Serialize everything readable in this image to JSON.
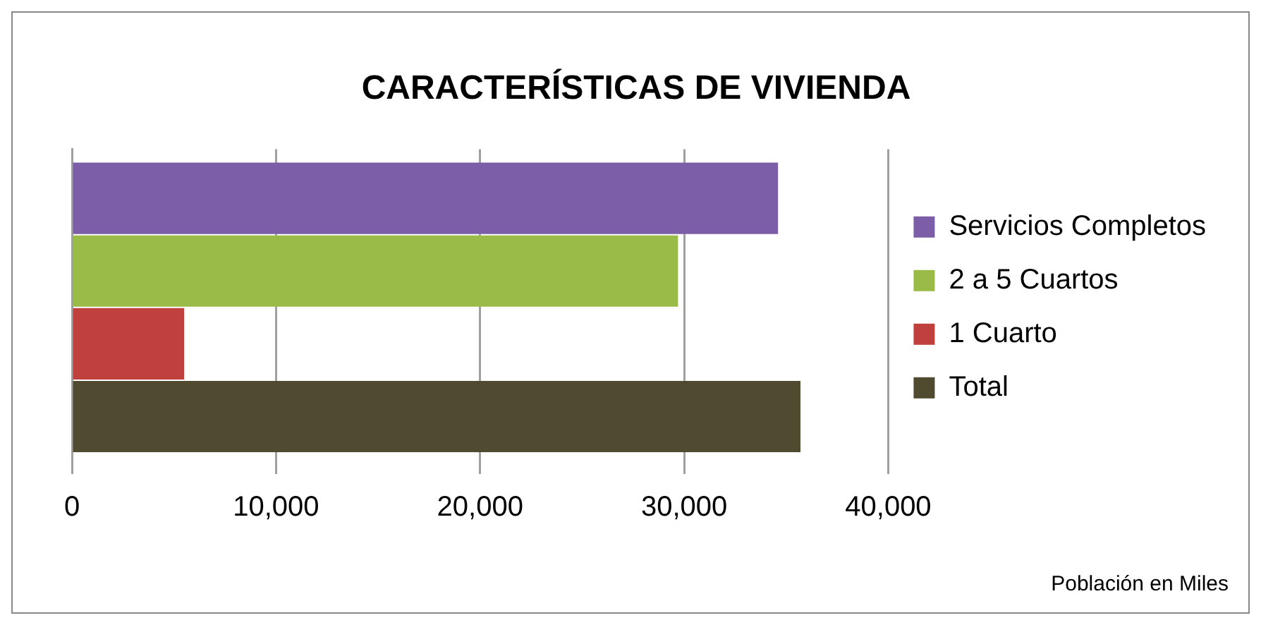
{
  "chart_data": {
    "type": "bar",
    "orientation": "horizontal",
    "title": "CARACTERÍSTICAS DE VIVIENDA",
    "categories": [
      null
    ],
    "series": [
      {
        "name": "Servicios Completos",
        "color": "#7b5ea7",
        "values": [
          34600
        ]
      },
      {
        "name": "2 a 5 Cuartos",
        "color": "#9bbb48",
        "values": [
          29700
        ]
      },
      {
        "name": "1 Cuarto",
        "color": "#c0403d",
        "values": [
          5500
        ]
      },
      {
        "name": "Total",
        "color": "#4f4a30",
        "values": [
          35700
        ]
      }
    ],
    "xlim": [
      0,
      40000
    ],
    "xticks": [
      {
        "value": 0,
        "label": "0"
      },
      {
        "value": 10000,
        "label": "10,000"
      },
      {
        "value": 20000,
        "label": "20,000"
      },
      {
        "value": 30000,
        "label": "30,000"
      },
      {
        "value": 40000,
        "label": "40,000"
      }
    ],
    "grid": "x",
    "legend": "right",
    "annotations": [
      "Población en Miles"
    ]
  }
}
